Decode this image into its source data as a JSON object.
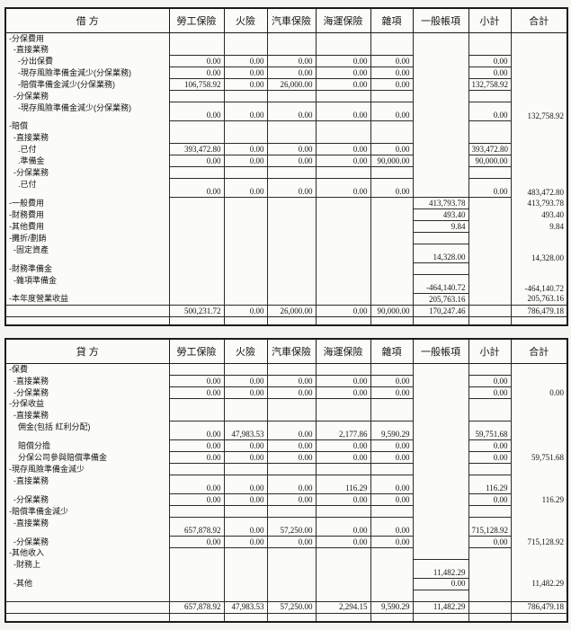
{
  "tables": [
    {
      "title": "借  方",
      "columns": [
        "勞工保險",
        "火險",
        "汽車保險",
        "海運保險",
        "雜項",
        "一般帳項",
        "小計",
        "合計"
      ],
      "rows": [
        {
          "label": "-分保費用",
          "indent": 0
        },
        {
          "label": "-直接業務",
          "indent": 1
        },
        {
          "label": "-分出保費",
          "indent": 2,
          "cells": [
            "0.00",
            "0.00",
            "0.00",
            "0.00",
            "0.00",
            null,
            "0.00",
            null
          ]
        },
        {
          "label": "-現存風險準備金減少(分保業務)",
          "indent": 2,
          "cells": [
            "0.00",
            "0.00",
            "0.00",
            "0.00",
            "0.00",
            null,
            "0.00",
            null
          ]
        },
        {
          "label": "-賠償準備金減少(分保業務)",
          "indent": 2,
          "cells": [
            "106,758.92",
            "0.00",
            "26,000.00",
            "0.00",
            "0.00",
            null,
            "132,758.92",
            null
          ]
        },
        {
          "label": "-分保業務",
          "indent": 1
        },
        {
          "label": "-現存風險準備金減少(分保業務)",
          "indent": 2,
          "tall": true,
          "cells": [
            "0.00",
            "0.00",
            "0.00",
            "0.00",
            "0.00",
            null,
            "0.00",
            "132,758.92"
          ]
        },
        {
          "label": "-賠償",
          "indent": 0
        },
        {
          "label": "-直接業務",
          "indent": 1
        },
        {
          "label": ".已付",
          "indent": 2,
          "cells": [
            "393,472.80",
            "0.00",
            "0.00",
            "0.00",
            "0.00",
            null,
            "393,472.80",
            null
          ]
        },
        {
          "label": ".準備金",
          "indent": 2,
          "cells": [
            "0.00",
            "0.00",
            "0.00",
            "0.00",
            "90,000.00",
            null,
            "90,000.00",
            null
          ]
        },
        {
          "label": "-分保業務",
          "indent": 1
        },
        {
          "label": ".已付",
          "indent": 2,
          "tall": true,
          "cells": [
            "0.00",
            "0.00",
            "0.00",
            "0.00",
            "0.00",
            null,
            "0.00",
            "483,472.80"
          ]
        },
        {
          "label": "-一般費用",
          "indent": 0,
          "cells": [
            null,
            null,
            null,
            null,
            null,
            "413,793.78",
            null,
            "413,793.78"
          ]
        },
        {
          "label": "-財務費用",
          "indent": 0,
          "cells": [
            null,
            null,
            null,
            null,
            null,
            "493.40",
            null,
            "493.40"
          ]
        },
        {
          "label": "-其他費用",
          "indent": 0,
          "cells": [
            null,
            null,
            null,
            null,
            null,
            "9.84",
            null,
            "9.84"
          ]
        },
        {
          "label": "-攤折/劃銷",
          "indent": 0,
          "cells": [
            null,
            null,
            null,
            null,
            null,
            "",
            null,
            null
          ]
        },
        {
          "label": "-固定資產",
          "indent": 1,
          "tall": true,
          "cells": [
            null,
            null,
            null,
            null,
            null,
            "14,328.00",
            null,
            "14,328.00"
          ]
        },
        {
          "label": "-財務準備金",
          "indent": 0,
          "cells": [
            null,
            null,
            null,
            null,
            null,
            "",
            null,
            null
          ]
        },
        {
          "label": "-雜項準備金",
          "indent": 1,
          "tall": true,
          "cells": [
            null,
            null,
            null,
            null,
            null,
            "-464,140.72",
            null,
            "-464,140.72"
          ]
        },
        {
          "label": "-本年度營業收益",
          "indent": 0,
          "cells": [
            null,
            null,
            null,
            null,
            null,
            "205,763.16",
            null,
            "205,763.16"
          ]
        },
        {
          "label": "",
          "total": true,
          "cells": [
            "500,231.72",
            "0.00",
            "26,000.00",
            "0.00",
            "90,000.00",
            "170,247.46",
            null,
            "786,479.18"
          ]
        }
      ]
    },
    {
      "title": "貸  方",
      "columns": [
        "勞工保險",
        "火險",
        "汽車保險",
        "海運保險",
        "雜項",
        "一般帳項",
        "小計",
        "合計"
      ],
      "rows": [
        {
          "label": "-保費",
          "indent": 0
        },
        {
          "label": "-直接業務",
          "indent": 1,
          "cells": [
            "0.00",
            "0.00",
            "0.00",
            "0.00",
            "0.00",
            null,
            "0.00",
            null
          ]
        },
        {
          "label": "-分保業務",
          "indent": 1,
          "cells": [
            "0.00",
            "0.00",
            "0.00",
            "0.00",
            "0.00",
            null,
            "0.00",
            "0.00"
          ]
        },
        {
          "label": "-分保收益",
          "indent": 0
        },
        {
          "label": "-直接業務",
          "indent": 1
        },
        {
          "label": "佣金(包括 紅利分配)",
          "indent": 2,
          "tall": true,
          "cells": [
            "0.00",
            "47,983.53",
            "0.00",
            "2,177.86",
            "9,590.29",
            null,
            "59,751.68",
            null
          ]
        },
        {
          "label": "賠償分擔",
          "indent": 2,
          "cells": [
            "0.00",
            "0.00",
            "0.00",
            "0.00",
            "0.00",
            null,
            "0.00",
            null
          ]
        },
        {
          "label": "分保公司參與賠償準備金",
          "indent": 2,
          "cells": [
            "0.00",
            "0.00",
            "0.00",
            "0.00",
            "0.00",
            null,
            "0.00",
            "59,751.68"
          ]
        },
        {
          "label": "-現存風險準備金減少",
          "indent": 0
        },
        {
          "label": "-直接業務",
          "indent": 1,
          "tall": true,
          "cells": [
            "0.00",
            "0.00",
            "0.00",
            "116.29",
            "0.00",
            null,
            "116.29",
            null
          ]
        },
        {
          "label": "-分保業務",
          "indent": 1,
          "cells": [
            "0.00",
            "0.00",
            "0.00",
            "0.00",
            "0.00",
            null,
            "0.00",
            "116.29"
          ]
        },
        {
          "label": "-賠償準備金減少",
          "indent": 0
        },
        {
          "label": "-直接業務",
          "indent": 1,
          "tall": true,
          "cells": [
            "657,878.92",
            "0.00",
            "57,250.00",
            "0.00",
            "0.00",
            null,
            "715,128.92",
            null
          ]
        },
        {
          "label": "-分保業務",
          "indent": 1,
          "cells": [
            "0.00",
            "0.00",
            "0.00",
            "0.00",
            "0.00",
            null,
            "0.00",
            "715,128.92"
          ]
        },
        {
          "label": "-其他收入",
          "indent": 0
        },
        {
          "label": "-財務上",
          "indent": 1,
          "tall": true,
          "cells": [
            null,
            null,
            null,
            null,
            null,
            "11,482.29",
            null,
            null
          ]
        },
        {
          "label": "-其他",
          "indent": 1,
          "cells": [
            null,
            null,
            null,
            null,
            null,
            "0.00",
            null,
            "11,482.29"
          ]
        },
        {
          "label": "",
          "indent": 0,
          "cells": [
            null,
            null,
            null,
            null,
            null,
            "",
            null,
            null
          ]
        },
        {
          "label": "",
          "total": true,
          "cells": [
            "657,878.92",
            "47,983.53",
            "57,250.00",
            "2,294.15",
            "9,590.29",
            "11,482.29",
            null,
            "786,479.18"
          ]
        }
      ]
    }
  ]
}
